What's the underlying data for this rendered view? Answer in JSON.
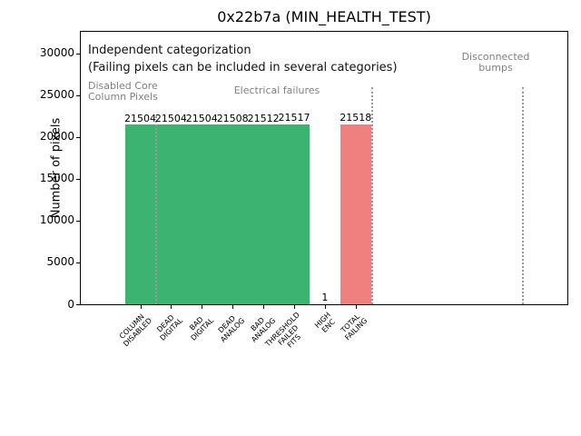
{
  "chart_data": {
    "type": "bar",
    "title": "0x22b7a (MIN_HEALTH_TEST)",
    "ylabel": "Number of pixels",
    "xlabel": "",
    "ylim": [
      0,
      32600
    ],
    "yticks": [
      0,
      5000,
      10000,
      15000,
      20000,
      25000,
      30000
    ],
    "grid": false,
    "legend": null,
    "categories": [
      "COLUMN\nDISABLED",
      "DEAD\nDIGITAL",
      "BAD\nDIGITAL",
      "DEAD\nANALOG",
      "BAD\nANALOG",
      "THRESHOLD\nFAILED\nFITS",
      "HIGH\nENC",
      "TOTAL\nFAILING"
    ],
    "values": [
      21504,
      21504,
      21504,
      21508,
      21512,
      21517,
      1,
      21518
    ],
    "bar_colors": [
      "#3cb371",
      "#3cb371",
      "#3cb371",
      "#3cb371",
      "#3cb371",
      "#3cb371",
      "#3cb371",
      "#f08080"
    ],
    "separators": [
      {
        "x_index": 0.5,
        "top_value": 22500
      },
      {
        "x_index": 7.5,
        "top_value": 26000
      },
      {
        "x_index": 12.4,
        "top_value": 26000
      }
    ],
    "annotations": {
      "note_line1": "Independent categorization",
      "note_line2": "(Failing pixels can be included in several categories)",
      "group_labels": [
        {
          "text": "Disabled Core\nColumn Pixels"
        },
        {
          "text": "Electrical failures"
        },
        {
          "text": "Disconnected\nbumps"
        }
      ]
    },
    "colors": {
      "bar_green": "#3cb371",
      "bar_red": "#f08080",
      "annotation_gray": "#808080",
      "separator_gray": "#9a9a9a"
    }
  }
}
